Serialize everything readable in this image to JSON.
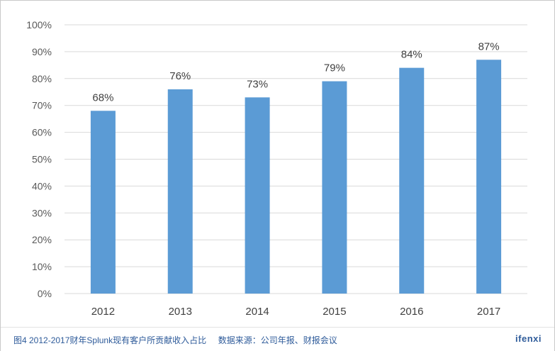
{
  "chart_data": {
    "type": "bar",
    "categories": [
      "2012",
      "2013",
      "2014",
      "2015",
      "2016",
      "2017"
    ],
    "values": [
      68,
      76,
      73,
      79,
      84,
      87
    ],
    "data_labels": [
      "68%",
      "76%",
      "73%",
      "79%",
      "84%",
      "87%"
    ],
    "y_ticks": [
      "0%",
      "10%",
      "20%",
      "30%",
      "40%",
      "50%",
      "60%",
      "70%",
      "80%",
      "90%",
      "100%"
    ],
    "ylim": [
      0,
      100
    ],
    "grid": true,
    "legend": "none",
    "bar_color": "#5b9bd5",
    "grid_color": "#d9d9d9"
  },
  "footer": {
    "caption": "图4 2012-2017财年Splunk现有客户所贡献收入占比     数据来源：公司年报、财报会议",
    "brand": "ifenxi"
  }
}
